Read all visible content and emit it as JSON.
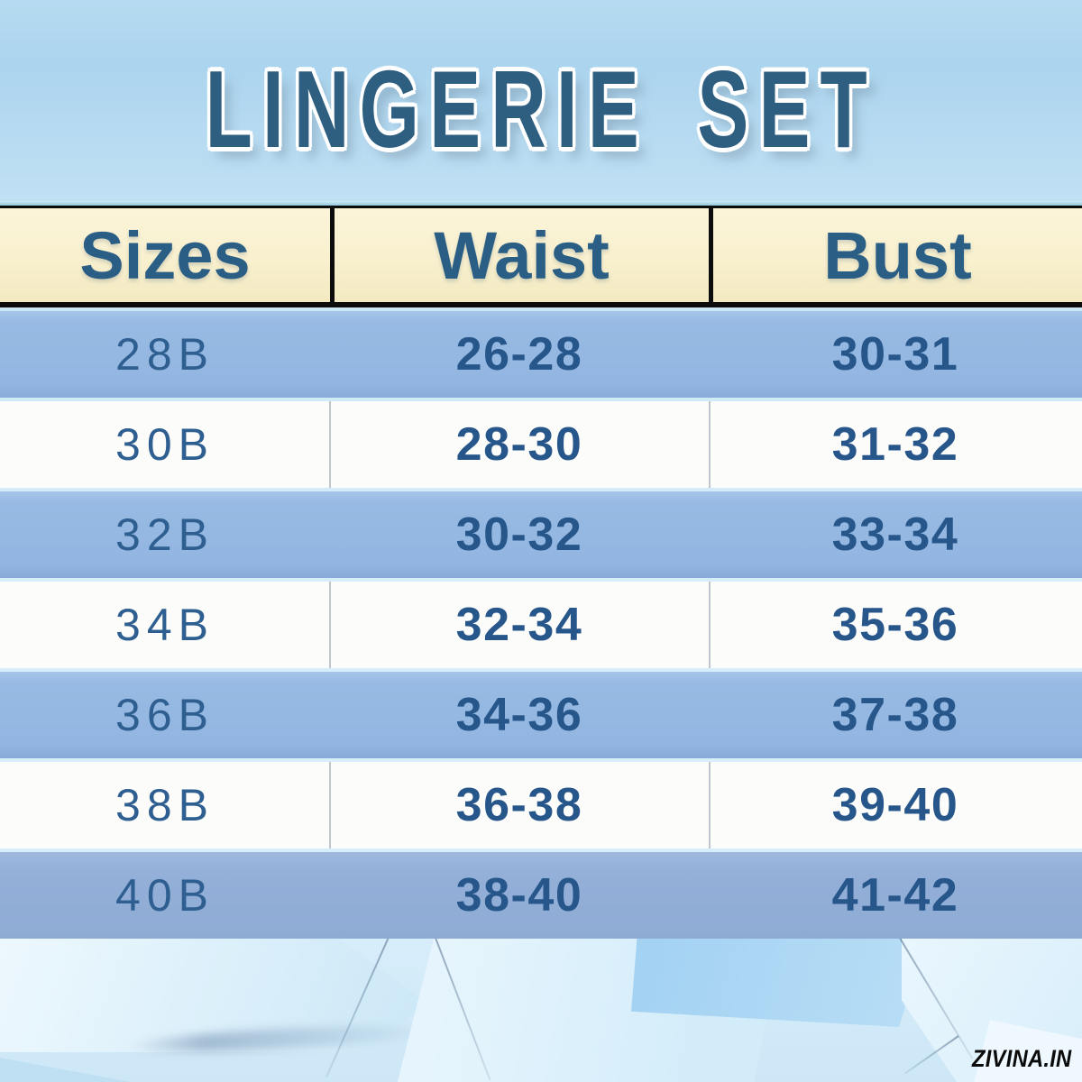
{
  "title": "LINGERIE SET",
  "watermark": "ZIVINA.IN",
  "colors": {
    "title_text": "#2F5F80",
    "header_bg": "#F8F0CE",
    "header_text": "#2B5E84",
    "row_blue": "#95B8E2",
    "row_blue_last": "#92AFD8",
    "row_white": "#FCFCFB",
    "cell_text": "#27568B",
    "divider_black": "#0C0C0C",
    "background_blue": "#CDE7F7"
  },
  "chart_data": {
    "type": "table",
    "title": "LINGERIE SET",
    "columns": [
      "Sizes",
      "Waist",
      "Bust"
    ],
    "rows": [
      [
        "28B",
        "26-28",
        "30-31"
      ],
      [
        "30B",
        "28-30",
        "31-32"
      ],
      [
        "32B",
        "30-32",
        "33-34"
      ],
      [
        "34B",
        "32-34",
        "35-36"
      ],
      [
        "36B",
        "34-36",
        "37-38"
      ],
      [
        "38B",
        "36-38",
        "39-40"
      ],
      [
        "40B",
        "38-40",
        "41-42"
      ]
    ]
  },
  "table": {
    "headers": [
      "Sizes",
      "Waist",
      "Bust"
    ],
    "rows": [
      {
        "size": "28B",
        "waist": "26-28",
        "bust": "30-31"
      },
      {
        "size": "30B",
        "waist": "28-30",
        "bust": "31-32"
      },
      {
        "size": "32B",
        "waist": "30-32",
        "bust": "33-34"
      },
      {
        "size": "34B",
        "waist": "32-34",
        "bust": "35-36"
      },
      {
        "size": "36B",
        "waist": "34-36",
        "bust": "37-38"
      },
      {
        "size": "38B",
        "waist": "36-38",
        "bust": "39-40"
      },
      {
        "size": "40B",
        "waist": "38-40",
        "bust": "41-42"
      }
    ]
  }
}
